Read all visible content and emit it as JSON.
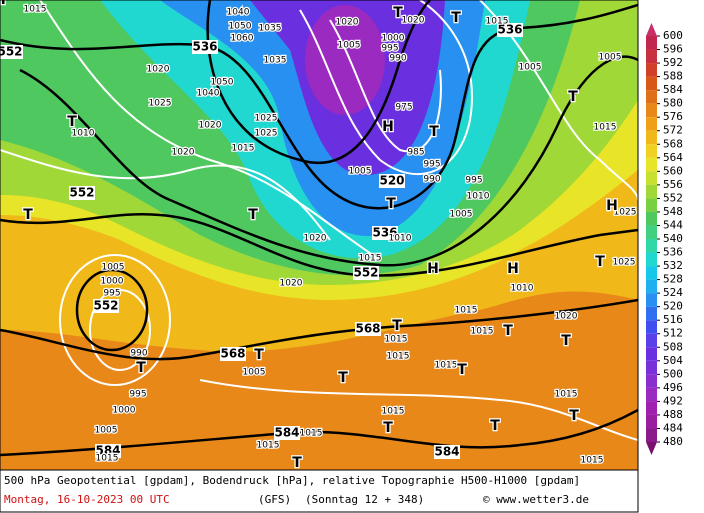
{
  "map": {
    "labels": [
      "552",
      "536",
      "536",
      "552",
      "520",
      "536",
      "552",
      "552",
      "568",
      "568",
      "584",
      "584",
      "584",
      "1015",
      "1040",
      "1050",
      "1060",
      "1035",
      "1035",
      "1050",
      "1040",
      "1025",
      "1020",
      "1020",
      "1025",
      "1025",
      "1015",
      "1020",
      "1010",
      "1005",
      "1000",
      "995",
      "990",
      "1005",
      "975",
      "985",
      "995",
      "990",
      "995",
      "1010",
      "1005",
      "1010",
      "1015",
      "1020",
      "1020",
      "1005",
      "1000",
      "995",
      "990",
      "995",
      "1000",
      "1005",
      "1005",
      "1010",
      "1015",
      "1015",
      "1015",
      "1015",
      "1015",
      "1015",
      "1015",
      "1015",
      "1015",
      "1015",
      "1015",
      "1020",
      "1025",
      "1025",
      "1005",
      "1005",
      "1015",
      "1015",
      "1020",
      "1020",
      "T",
      "T",
      "T",
      "T",
      "H",
      "T",
      "T",
      "T",
      "H",
      "H",
      "T",
      "T",
      "T",
      "T",
      "T",
      "T",
      "T",
      "T",
      "T",
      "T",
      "T",
      "T",
      "H",
      "T",
      "H"
    ]
  },
  "colorbar": {
    "levels": [
      600,
      596,
      592,
      588,
      584,
      580,
      576,
      572,
      568,
      564,
      560,
      556,
      552,
      548,
      544,
      540,
      536,
      532,
      528,
      524,
      520,
      516,
      512,
      508,
      504,
      500,
      496,
      492,
      488,
      484,
      480
    ],
    "colors": [
      "#c02850",
      "#c83040",
      "#d04028",
      "#d85818",
      "#e07018",
      "#e88818",
      "#f0a018",
      "#f0b818",
      "#f0d020",
      "#e8e428",
      "#c8e030",
      "#a0d838",
      "#78d040",
      "#50c860",
      "#40d080",
      "#30d8a8",
      "#20d8d0",
      "#18c8e8",
      "#20b0f0",
      "#2890f0",
      "#3070f0",
      "#4050f0",
      "#5a40e8",
      "#6a30e0",
      "#7a30d8",
      "#8a2ed0",
      "#9a2ac0",
      "#a020b0",
      "#9a1fa0",
      "#8b1a8b"
    ],
    "above_color": "#c8306a",
    "below_color": "#7a1070"
  },
  "footer": {
    "line1": "500 hPa Geopotential [gpdam], Bodendruck [hPa], relative Topographie H500-H1000 [gpdam]",
    "date": "Montag, 16-10-2023  00 UTC",
    "model": "(GFS)",
    "run": "(Sonntag 12 + 348)",
    "credit": "© www.wetter3.de"
  }
}
